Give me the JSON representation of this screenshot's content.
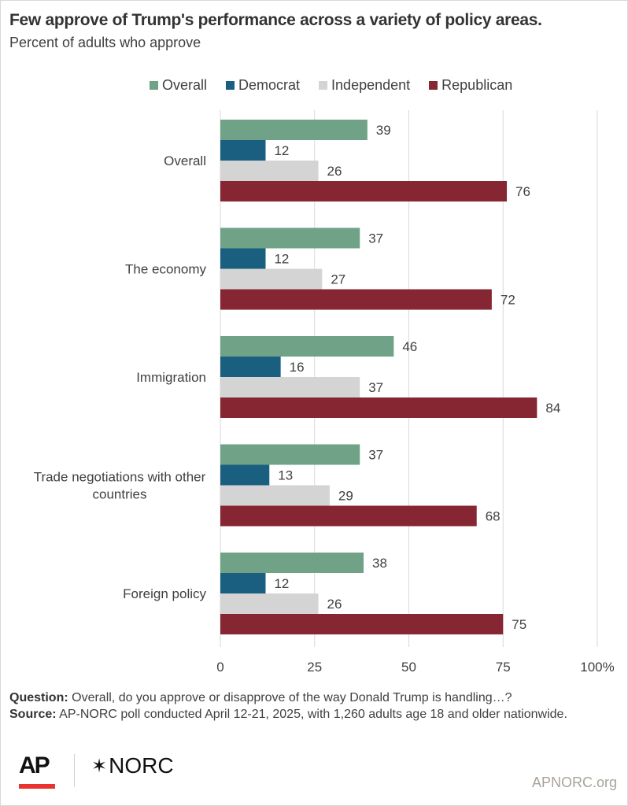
{
  "title": "Few approve of Trump's performance across a variety of policy areas.",
  "subtitle": "Percent of adults who approve",
  "legend": [
    {
      "label": "Overall",
      "color": "#6fa287"
    },
    {
      "label": "Democrat",
      "color": "#1a5e80"
    },
    {
      "label": "Independent",
      "color": "#d4d4d4"
    },
    {
      "label": "Republican",
      "color": "#862633"
    }
  ],
  "chart_data": {
    "type": "bar",
    "orientation": "horizontal",
    "title": "Few approve of Trump's performance across a variety of policy areas.",
    "subtitle": "Percent of adults who approve",
    "xlabel": "",
    "ylabel": "",
    "xlim": [
      0,
      100
    ],
    "xticks": [
      "0",
      "25",
      "50",
      "75",
      "100%"
    ],
    "xtick_values": [
      0,
      25,
      50,
      75,
      100
    ],
    "grid": true,
    "legend_position": "top",
    "categories": [
      "Overall",
      "The economy",
      "Immigration",
      "Trade negotiations with other countries",
      "Foreign policy"
    ],
    "category_lines": [
      [
        "Overall"
      ],
      [
        "The economy"
      ],
      [
        "Immigration"
      ],
      [
        "Trade negotiations with other",
        "countries"
      ],
      [
        "Foreign policy"
      ]
    ],
    "series": [
      {
        "name": "Overall",
        "color": "#6fa287",
        "values": [
          39,
          37,
          46,
          37,
          38
        ]
      },
      {
        "name": "Democrat",
        "color": "#1a5e80",
        "values": [
          12,
          12,
          16,
          13,
          12
        ]
      },
      {
        "name": "Independent",
        "color": "#d4d4d4",
        "values": [
          26,
          27,
          37,
          29,
          26
        ]
      },
      {
        "name": "Republican",
        "color": "#862633",
        "values": [
          76,
          72,
          84,
          68,
          75
        ]
      }
    ]
  },
  "notes": {
    "question_label": "Question:",
    "question_text": " Overall, do you approve or disapprove of the way Donald Trump is handling…?",
    "source_label": "Source:",
    "source_text": " AP-NORC poll conducted April 12-21, 2025, with 1,260 adults age 18 and older nationwide."
  },
  "footer": {
    "ap_logo": "AP",
    "norc_star": "✶",
    "norc_logo": "NORC",
    "site": "APNORC.org"
  }
}
